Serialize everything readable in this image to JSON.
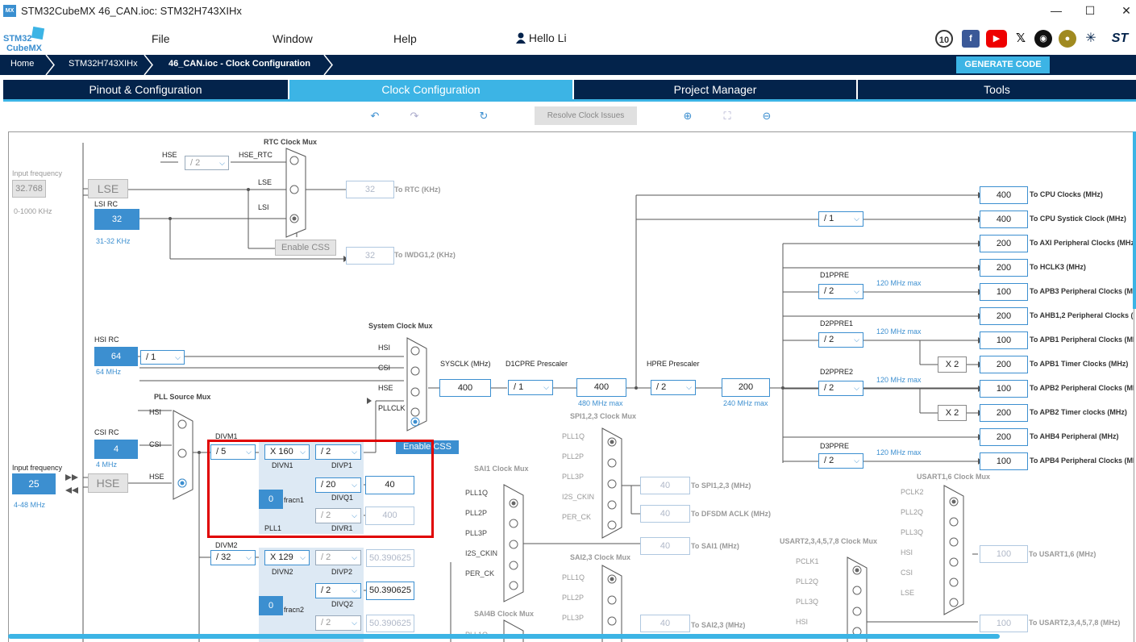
{
  "app": {
    "badge": "MX",
    "title": "STM32CubeMX 46_CAN.ioc: STM32H743XIHx",
    "minimize": "—",
    "maximize": "☐",
    "close": "✕"
  },
  "logo": {
    "line1": "STM32",
    "line2": "CubeMX"
  },
  "menu": {
    "file": "File",
    "window": "Window",
    "help": "Help",
    "user": "Hello Li"
  },
  "breadcrumb": {
    "home": "Home",
    "mcu": "STM32H743XIHx",
    "page": "46_CAN.ioc - Clock Configuration"
  },
  "generate": "GENERATE CODE",
  "tabs": [
    "Pinout & Configuration",
    "Clock Configuration",
    "Project Manager",
    "Tools"
  ],
  "toolbar": {
    "resolve": "Resolve Clock Issues"
  },
  "clock": {
    "input_freq_label": "Input frequency",
    "lse_freq": "32.768",
    "lse_range": "0-1000 KHz",
    "lse": "LSE",
    "lsi_rc": "LSI RC",
    "lsi_val": "32",
    "lsi_range": "31-32 KHz",
    "rtc_mux": "RTC Clock Mux",
    "hse_label": "HSE",
    "hse_rtc": "HSE_RTC",
    "div2": "/ 2",
    "lse_l": "LSE",
    "lsi_l": "LSI",
    "enable_css": "Enable CSS",
    "rtc_val": "32",
    "rtc_out": "To RTC (KHz)",
    "iwdg_val": "32",
    "iwdg_out": "To IWDG1,2 (KHz)",
    "hsi_rc": "HSI RC",
    "hsi_val": "64",
    "hsi_div": "/ 1",
    "hsi_range": "64 MHz",
    "csi_rc": "CSI RC",
    "csi_val": "4",
    "csi_range": "4 MHz",
    "input_freq2": "Input frequency",
    "hse_val": "25",
    "hse_range": "4-48 MHz",
    "hse_box": "HSE",
    "pll_src_mux": "PLL Source Mux",
    "m_hsi": "HSI",
    "m_csi": "CSI",
    "m_hse": "HSE",
    "sys_mux": "System Clock Mux",
    "s_hsi": "HSI",
    "s_csi": "CSI",
    "s_hse": "HSE",
    "s_pll": "PLLCLK",
    "enable_css2": "Enable CSS",
    "sysclk_label": "SYSCLK (MHz)",
    "sysclk": "400",
    "d1cpre_label": "D1CPRE Prescaler",
    "d1cpre": "/ 1",
    "d1_val": "400",
    "d1_max": "480 MHz max",
    "hpre_label": "HPRE Prescaler",
    "hpre": "/ 2",
    "hpre_val": "200",
    "hpre_max": "240 MHz max",
    "divm1": "DIVM1",
    "divm1_val": "/ 5",
    "divn1_val": "X 160",
    "divn1": "DIVN1",
    "divp1_val": "/ 2",
    "divp1": "DIVP1",
    "divq1_val": "/ 20",
    "divq1": "DIVQ1",
    "divq1_out": "40",
    "fracn1_val": "0",
    "fracn1": "fracn1",
    "divr1_val": "/ 2",
    "divr1": "DIVR1",
    "divr1_out": "400",
    "pll1": "PLL1",
    "divm2": "DIVM2",
    "divm2_val": "/ 32",
    "divn2_val": "X 129",
    "divn2": "DIVN2",
    "divp2_val": "/ 2",
    "divp2": "DIVP2",
    "divp2_out": "50.390625",
    "divq2_val": "/ 2",
    "divq2": "DIVQ2",
    "divq2_out": "50.390625",
    "fracn2_val": "0",
    "fracn2": "fracn2",
    "divr2_val": "/ 2",
    "divr2_out": "50.390625",
    "spi_mux": "SPI1,2,3 Clock Mux",
    "spi_in": [
      "PLL1Q",
      "PLL2P",
      "PLL3P",
      "I2S_CKIN",
      "PER_CK"
    ],
    "spi_val": "40",
    "spi_out": "To SPI1,2,3 (MHz)",
    "dfsdm_val": "40",
    "dfsdm_out": "To DFSDM ACLK (MHz)",
    "sai1_mux": "SAI1 Clock Mux",
    "sai1_in": [
      "PLL1Q",
      "PLL2P",
      "PLL3P",
      "I2S_CKIN",
      "PER_CK"
    ],
    "sai1_val": "40",
    "sai1_out": "To SAI1 (MHz)",
    "sai23_mux": "SAI2,3 Clock Mux",
    "sai23_in": [
      "PLL1Q",
      "PLL2P",
      "PLL3P"
    ],
    "sai23_val": "40",
    "sai23_out": "To SAI2,3 (MHz)",
    "sai4b_mux": "SAI4B Clock Mux",
    "sai4b_in": "PLL1Q",
    "usart16_mux": "USART1,6 Clock Mux",
    "usart16_in": [
      "PCLK2",
      "PLL2Q",
      "PLL3Q",
      "HSI",
      "CSI",
      "LSE"
    ],
    "usart16_val": "100",
    "usart16_out": "To USART1,6 (MHz)",
    "usart2_mux": "USART2,3,4,5,7,8 Clock Mux",
    "usart2_in": [
      "PCLK1",
      "PLL2Q",
      "PLL3Q",
      "HSI"
    ],
    "usart2_val": "100",
    "usart2_out": "To USART2,3,4,5,7,8 (MHz)",
    "outputs": [
      {
        "val": "400",
        "label": "To CPU Clocks (MHz)"
      },
      {
        "val": "400",
        "label": "To CPU Systick Clock (MHz)"
      },
      {
        "val": "200",
        "label": "To AXI Peripheral Clocks (MHz)"
      },
      {
        "val": "200",
        "label": "To HCLK3 (MHz)"
      },
      {
        "val": "100",
        "label": "To APB3 Peripheral Clocks (MHz)"
      },
      {
        "val": "200",
        "label": "To AHB1,2 Peripheral Clocks (MHz)"
      },
      {
        "val": "100",
        "label": "To APB1 Peripheral Clocks (MHz)"
      },
      {
        "val": "200",
        "label": "To APB1 Timer Clocks (MHz)"
      },
      {
        "val": "100",
        "label": "To APB2 Peripheral Clocks (MHz)"
      },
      {
        "val": "200",
        "label": "To APB2 Timer clocks (MHz)"
      },
      {
        "val": "200",
        "label": "To AHB4 Peripheral (MHz)"
      },
      {
        "val": "100",
        "label": "To APB4 Peripheral Clocks (MHz)"
      }
    ],
    "systick_div": "/ 1",
    "d1ppre": "D1PPRE",
    "d1ppre_val": "/ 2",
    "d2ppre1": "D2PPRE1",
    "d2ppre1_val": "/ 2",
    "d2ppre2": "D2PPRE2",
    "d2ppre2_val": "/ 2",
    "d3ppre": "D3PPRE",
    "d3ppre_val": "/ 2",
    "max120": "120 MHz max",
    "x2": "X 2"
  },
  "chart_data": {}
}
